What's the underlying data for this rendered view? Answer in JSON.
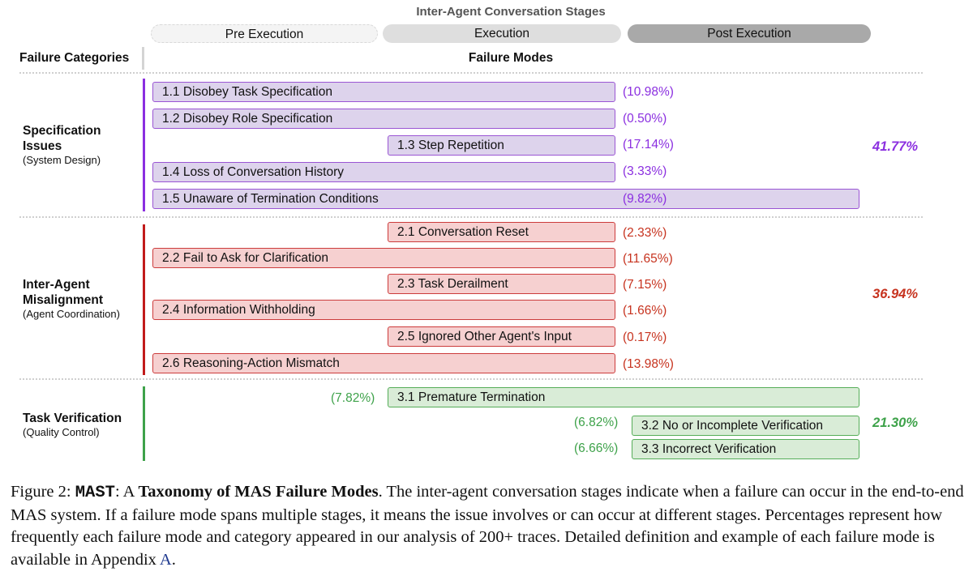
{
  "header": {
    "stages_title": "Inter-Agent Conversation Stages",
    "stages": [
      "Pre Execution",
      "Execution",
      "Post Execution"
    ],
    "categories_header": "Failure Categories",
    "modes_header": "Failure Modes"
  },
  "categories": [
    {
      "name_line1": "Specification",
      "name_line2": "Issues",
      "subtitle": "(System Design)",
      "total": "41.77%",
      "color": "#8b2fe0",
      "modes": [
        {
          "label": "1.1 Disobey Task Specification",
          "pct": "(10.98%)"
        },
        {
          "label": "1.2 Disobey Role Specification",
          "pct": "(0.50%)"
        },
        {
          "label": "1.3 Step Repetition",
          "pct": "(17.14%)"
        },
        {
          "label": "1.4 Loss of Conversation History",
          "pct": "(3.33%)"
        },
        {
          "label": "1.5 Unaware of Termination Conditions",
          "pct": "(9.82%)"
        }
      ]
    },
    {
      "name_line1": "Inter-Agent",
      "name_line2": "Misalignment",
      "subtitle": "(Agent Coordination)",
      "total": "36.94%",
      "color": "#c7331f",
      "modes": [
        {
          "label": "2.1 Conversation Reset",
          "pct": "(2.33%)"
        },
        {
          "label": "2.2 Fail to Ask for Clarification",
          "pct": "(11.65%)"
        },
        {
          "label": "2.3 Task Derailment",
          "pct": "(7.15%)"
        },
        {
          "label": "2.4 Information Withholding",
          "pct": "(1.66%)"
        },
        {
          "label": "2.5 Ignored Other Agent's Input",
          "pct": "(0.17%)"
        },
        {
          "label": "2.6 Reasoning-Action Mismatch",
          "pct": "(13.98%)"
        }
      ]
    },
    {
      "name_line1": "Task Verification",
      "name_line2": "",
      "subtitle": "(Quality Control)",
      "total": "21.30%",
      "color": "#3ea24a",
      "modes": [
        {
          "label": "3.1  Premature Termination",
          "pct": "(7.82%)"
        },
        {
          "label": "3.2 No or Incomplete Verification",
          "pct": "(6.82%)"
        },
        {
          "label": "3.3 Incorrect Verification",
          "pct": "(6.66%)"
        }
      ]
    }
  ],
  "caption": {
    "figure_label": "Figure 2: ",
    "mast": "MAST",
    "colon": ": A ",
    "title_bold": "Taxonomy of MAS Failure Modes",
    "body": ". The inter-agent conversation stages indicate when a failure can occur in the end-to-end MAS system. If a failure mode spans multiple stages, it means the issue involves or can occur at different stages. Percentages represent how frequently each failure mode and category appeared in our analysis of 200+ traces. Detailed definition and example of each failure mode is available in Appendix ",
    "appendix": "A",
    "end": "."
  }
}
